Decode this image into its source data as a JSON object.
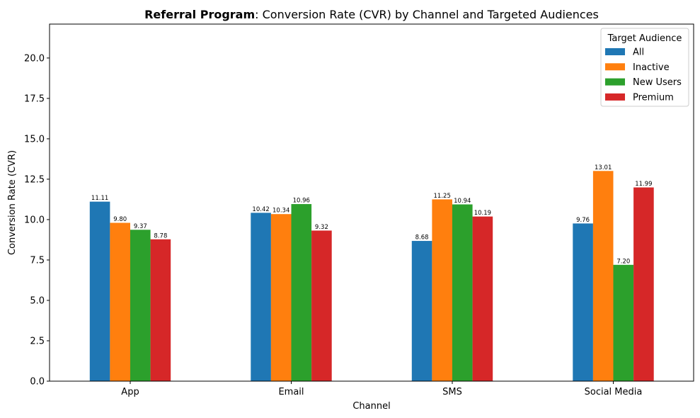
{
  "chart_data": {
    "type": "bar",
    "title_bold": "Referral Program",
    "title_rest": ": Conversion Rate (CVR) by Channel and Targeted Audiences",
    "xlabel": "Channel",
    "ylabel": "Conversion Rate (CVR)",
    "ylim": [
      0,
      22.1
    ],
    "yticks": [
      "0.0",
      "2.5",
      "5.0",
      "7.5",
      "10.0",
      "12.5",
      "15.0",
      "17.5",
      "20.0"
    ],
    "categories": [
      "App",
      "Email",
      "SMS",
      "Social Media"
    ],
    "legend_title": "Target Audience",
    "legend_position": "top-right",
    "grid": false,
    "series": [
      {
        "name": "All",
        "color": "#1f77b4",
        "values": [
          11.11,
          10.42,
          8.68,
          9.76
        ],
        "labels": [
          "11.11",
          "10.42",
          "8.68",
          "9.76"
        ]
      },
      {
        "name": "Inactive",
        "color": "#ff7f0e",
        "values": [
          9.8,
          10.34,
          11.25,
          13.01
        ],
        "labels": [
          "9.80",
          "10.34",
          "11.25",
          "13.01"
        ]
      },
      {
        "name": "New Users",
        "color": "#2ca02c",
        "values": [
          9.37,
          10.96,
          10.94,
          7.2
        ],
        "labels": [
          "9.37",
          "10.96",
          "10.94",
          "7.20"
        ]
      },
      {
        "name": "Premium",
        "color": "#d62728",
        "values": [
          8.78,
          9.32,
          10.19,
          11.99
        ],
        "labels": [
          "8.78",
          "9.32",
          "10.19",
          "11.99"
        ]
      }
    ]
  }
}
